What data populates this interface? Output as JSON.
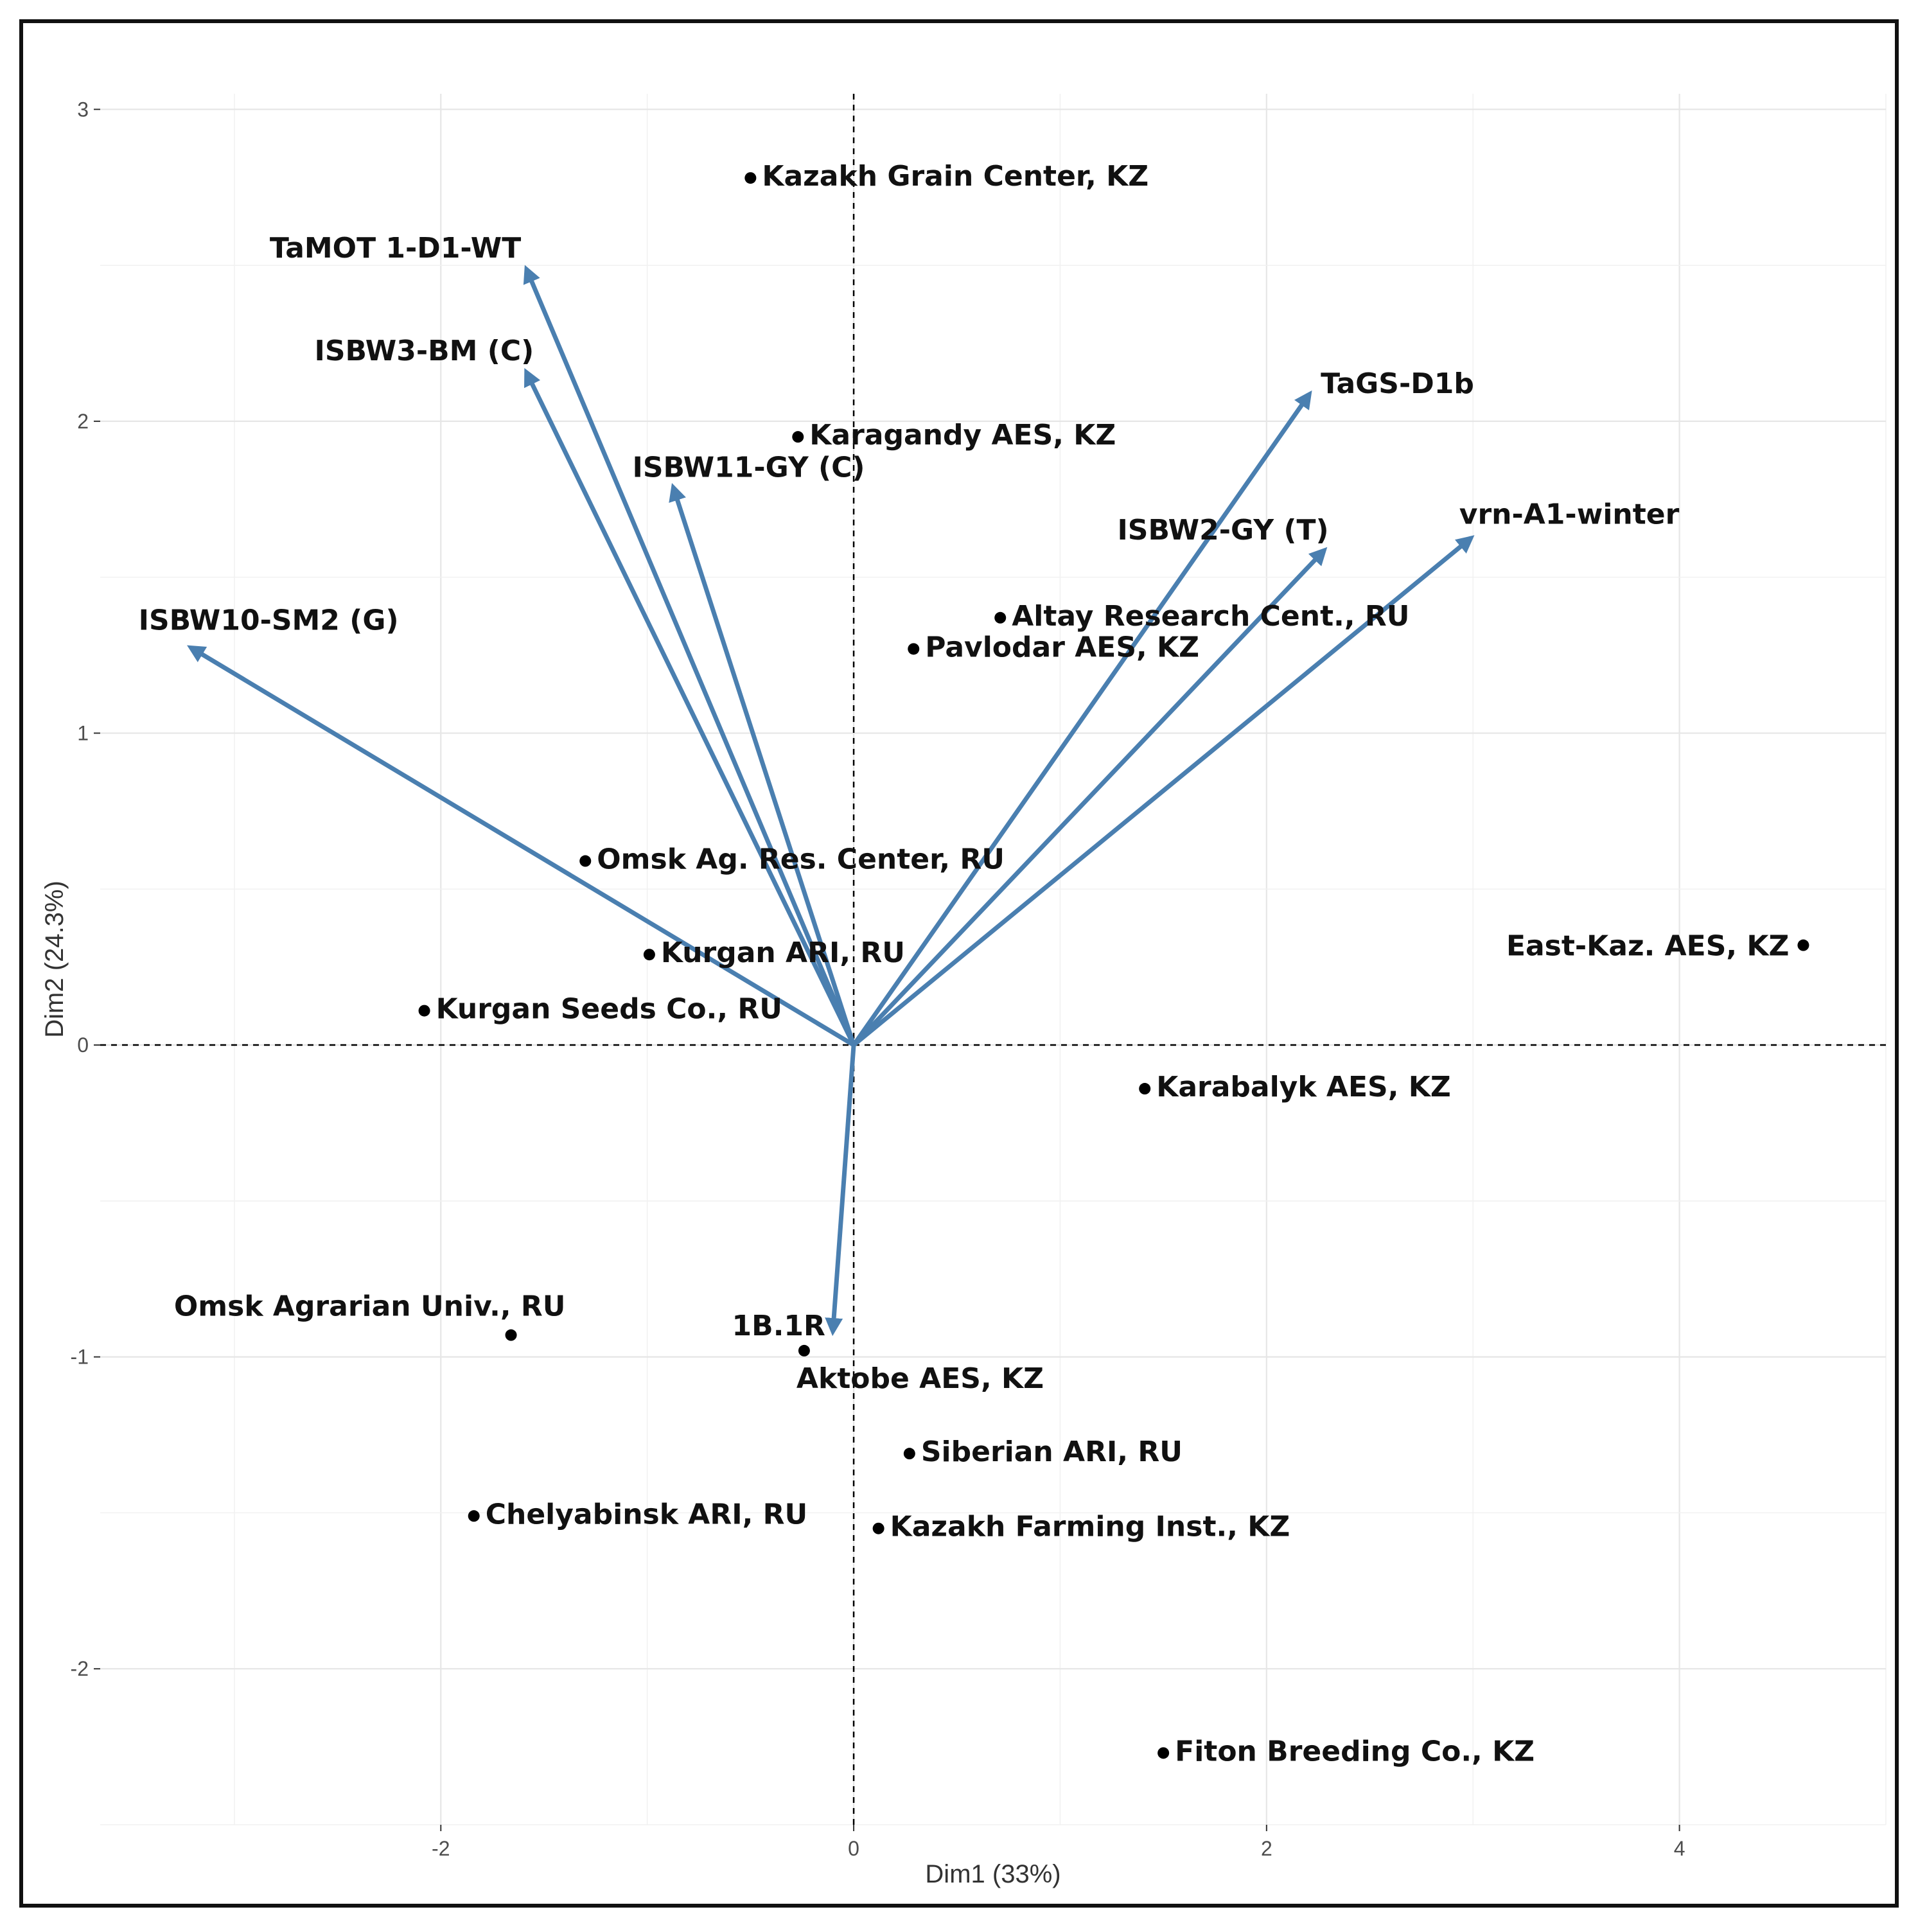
{
  "chart_data": {
    "type": "scatter",
    "title": "",
    "xlabel": "Dim1 (33%)",
    "ylabel": "Dim2 (24.3%)",
    "xlim": [
      -3.65,
      5.0
    ],
    "ylim": [
      -2.5,
      3.05
    ],
    "xticks": [
      -2,
      0,
      2,
      4
    ],
    "yticks": [
      -2,
      -1,
      0,
      1,
      2,
      3
    ],
    "xtick_labels": [
      "-2",
      "0",
      "2",
      "4"
    ],
    "ytick_labels": [
      "-2",
      "-1",
      "0",
      "1",
      "2",
      "3"
    ],
    "grid": true,
    "vector_color": "#4a7fb0",
    "point_color": "#000000",
    "points": [
      {
        "label": "Kazakh Grain Center, KZ",
        "x": -0.5,
        "y": 2.78
      },
      {
        "label": "Karagandy AES, KZ",
        "x": -0.27,
        "y": 1.95
      },
      {
        "label": "Altay Research Cent., RU",
        "x": 0.71,
        "y": 1.37
      },
      {
        "label": "Pavlodar AES, KZ",
        "x": 0.29,
        "y": 1.27
      },
      {
        "label": "Omsk Ag. Res. Center, RU",
        "x": -1.3,
        "y": 0.59
      },
      {
        "label": "Kurgan ARI, RU",
        "x": -0.99,
        "y": 0.29
      },
      {
        "label": "Kurgan Seeds Co., RU",
        "x": -2.08,
        "y": 0.11
      },
      {
        "label": "East-Kaz. AES, KZ",
        "x": 4.6,
        "y": 0.32
      },
      {
        "label": "Karabalyk AES, KZ",
        "x": 1.41,
        "y": -0.14
      },
      {
        "label": "Omsk Agrarian Univ., RU",
        "x": -1.66,
        "y": -0.93
      },
      {
        "label": "Aktobe AES, KZ",
        "x": -0.24,
        "y": -0.98
      },
      {
        "label": "Siberian ARI, RU",
        "x": 0.27,
        "y": -1.31
      },
      {
        "label": "Chelyabinsk ARI, RU",
        "x": -1.84,
        "y": -1.51
      },
      {
        "label": "Kazakh Farming Inst., KZ",
        "x": 0.12,
        "y": -1.55
      },
      {
        "label": "Fiton Breeding Co., KZ",
        "x": 1.5,
        "y": -2.27
      }
    ],
    "vectors": [
      {
        "label": "TaMOT  1-D1-WT",
        "x": -1.58,
        "y": 2.48
      },
      {
        "label": "ISBW3-BM (C)",
        "x": -1.58,
        "y": 2.15
      },
      {
        "label": "ISBW11-GY (C)",
        "x": -0.87,
        "y": 1.78
      },
      {
        "label": "ISBW10-SM2  (G)",
        "x": -3.2,
        "y": 1.27
      },
      {
        "label": "TaGS-D1b",
        "x": 2.2,
        "y": 2.08
      },
      {
        "label": "ISBW2-GY (T)",
        "x": 2.27,
        "y": 1.58
      },
      {
        "label": "vrn-A1-winter",
        "x": 2.98,
        "y": 1.62
      },
      {
        "label": "1B.1R",
        "x": -0.1,
        "y": -0.91
      }
    ]
  }
}
